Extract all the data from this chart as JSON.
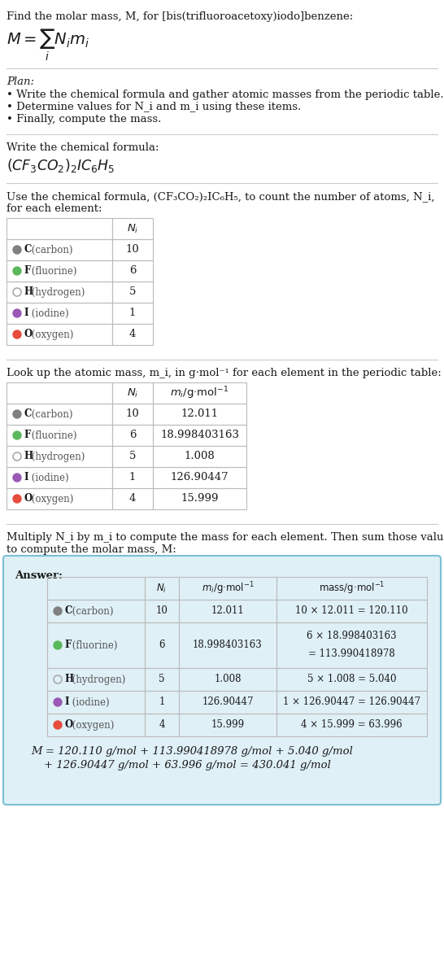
{
  "title_line": "Find the molar mass, M, for [bis(trifluoroacetoxy)iodo]benzene:",
  "plan_header": "Plan:",
  "plan_bullets": [
    "• Write the chemical formula and gather atomic masses from the periodic table.",
    "• Determine values for N_i and m_i using these items.",
    "• Finally, compute the mass."
  ],
  "formula_header": "Write the chemical formula:",
  "table1_intro_1": "Use the chemical formula, (CF₃CO₂)₂IC₆H₅, to count the number of atoms, N_i,",
  "table1_intro_2": "for each element:",
  "elements": [
    "C (carbon)",
    "F (fluorine)",
    "H (hydrogen)",
    "I (iodine)",
    "O (oxygen)"
  ],
  "element_symbols": [
    "C",
    "F",
    "H",
    "I",
    "O"
  ],
  "element_colors": [
    "#808080",
    "#5cb85c",
    "#ffffff",
    "#9b59b6",
    "#e74c3c"
  ],
  "element_hollow": [
    false,
    false,
    true,
    false,
    false
  ],
  "Ni_values": [
    "10",
    "6",
    "5",
    "1",
    "4"
  ],
  "mi_values": [
    "12.011",
    "18.998403163",
    "1.008",
    "126.90447",
    "15.999"
  ],
  "table2_intro": "Look up the atomic mass, m_i, in g·mol⁻¹ for each element in the periodic table:",
  "multiply_intro_1": "Multiply N_i by m_i to compute the mass for each element. Then sum those values",
  "multiply_intro_2": "to compute the molar mass, M:",
  "answer_label": "Answer:",
  "mass_col_line1": [
    "10 × 12.011 = 120.110",
    "6 × 18.998403163",
    "5 × 1.008 = 5.040",
    "1 × 126.90447 = 126.90447",
    "4 × 15.999 = 63.996"
  ],
  "mass_col_line2": [
    "",
    "= 113.990418978",
    "",
    "",
    ""
  ],
  "final_line1": "M = 120.110 g/mol + 113.990418978 g/mol + 5.040 g/mol",
  "final_line2": "+ 126.90447 g/mol + 63.996 g/mol = 430.041 g/mol",
  "bg_color": "#ffffff",
  "answer_bg": "#dff0f7",
  "answer_border": "#7cbfd4",
  "table_line_color": "#bbbbbb",
  "text_color": "#1a1a1a",
  "sep_line_color": "#cccccc",
  "fs_main": 9.5,
  "fs_small": 8.5,
  "fs_formula": 12.5
}
